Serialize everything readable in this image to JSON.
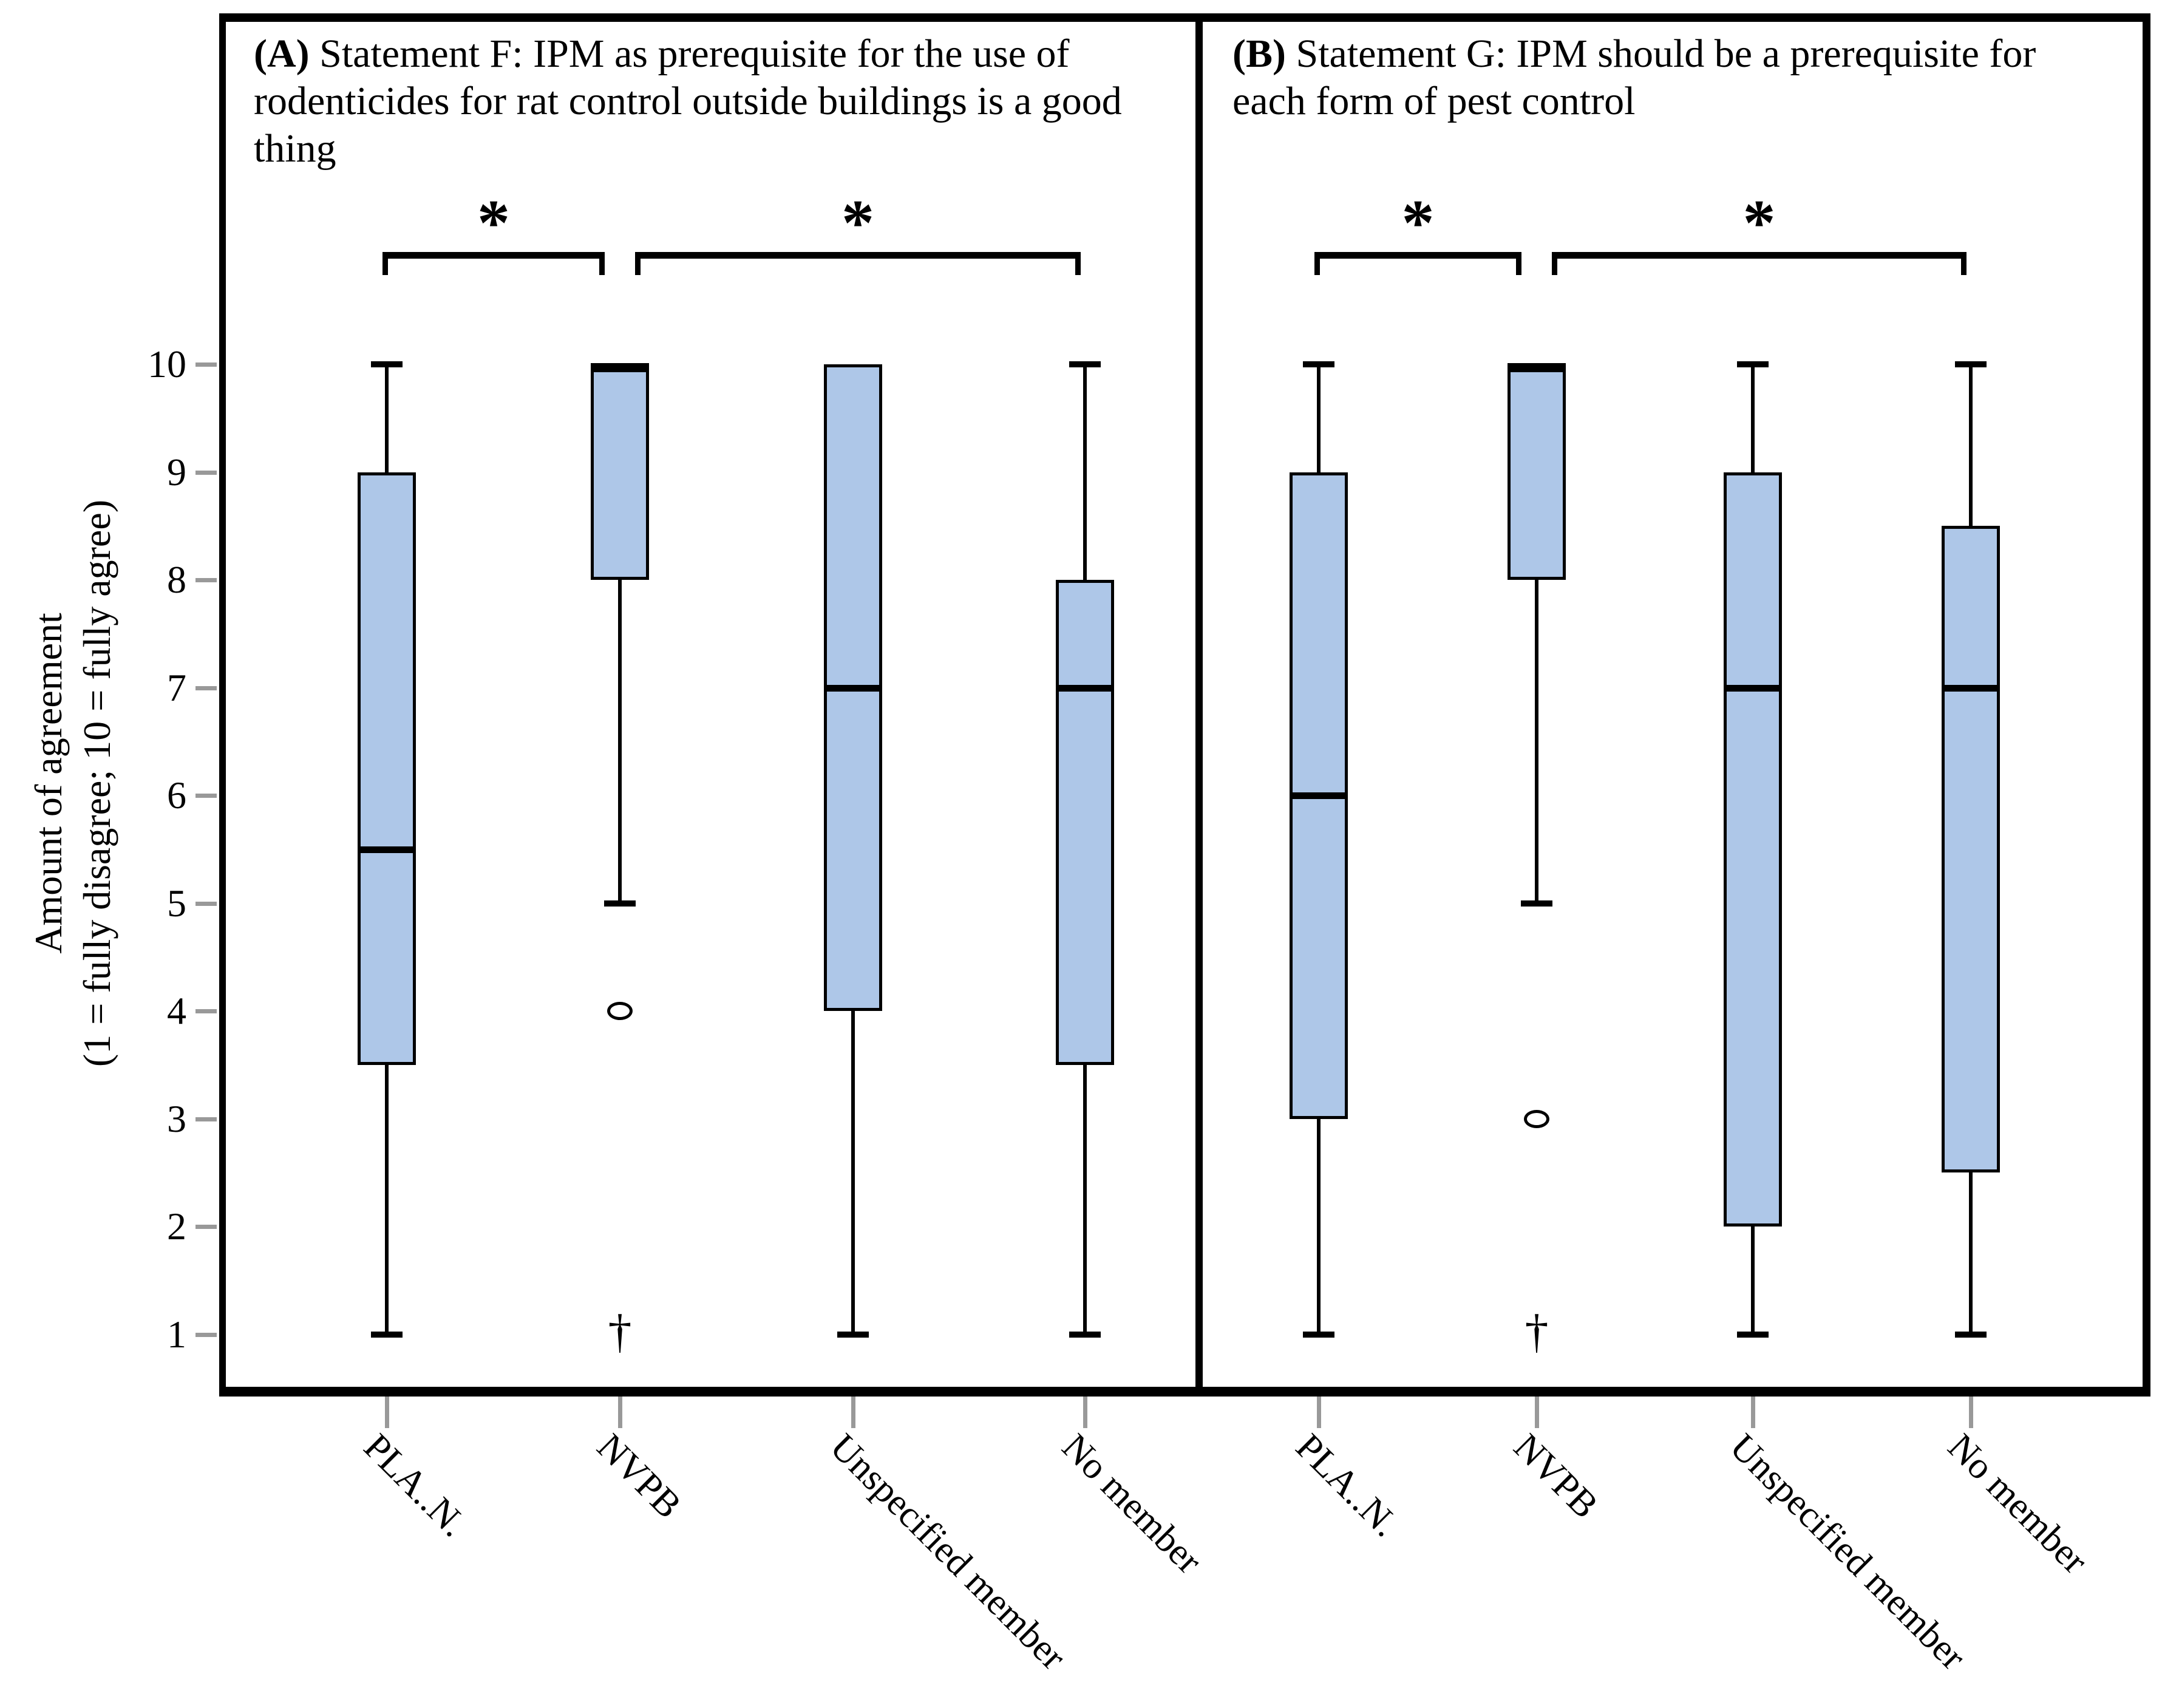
{
  "figure": {
    "y_axis": {
      "label_line1": "Amount of agreement",
      "label_line2": "(1 = fully disagree; 10 = fully agree)",
      "ticks": [
        10,
        9,
        8,
        7,
        6,
        5,
        4,
        3,
        2,
        1
      ]
    },
    "colors": {
      "box_fill": "#aec7e8",
      "line": "#000000",
      "tick_grey": "#999999"
    }
  },
  "chart_data": [
    {
      "type": "box",
      "panel": "A",
      "title_prefix": "(A)",
      "title": "Statement F: IPM as prerequisite for the use of rodenticides for rat control outside buildings is a good thing",
      "ylabel": "Amount of agreement (1 = fully disagree; 10 = fully agree)",
      "ylim": [
        1,
        10
      ],
      "categories": [
        "PLA..N.",
        "NVPB",
        "Unspecified member",
        "No member"
      ],
      "boxes": [
        {
          "group": "PLA..N.",
          "whisker_low": 1,
          "q1": 3.5,
          "median": 5.5,
          "q3": 9,
          "whisker_high": 10,
          "outliers": []
        },
        {
          "group": "NVPB",
          "whisker_low": 5,
          "q1": 8,
          "median": 10,
          "q3": 10,
          "whisker_high": null,
          "outliers": [
            {
              "symbol": "circle",
              "value": 4
            },
            {
              "symbol": "dagger",
              "value": 1
            }
          ]
        },
        {
          "group": "Unspecified member",
          "whisker_low": 1,
          "q1": 4,
          "median": 7,
          "q3": 10,
          "whisker_high": null,
          "outliers": []
        },
        {
          "group": "No member",
          "whisker_low": 1,
          "q1": 3.5,
          "median": 7,
          "q3": 8,
          "whisker_high": 10,
          "outliers": []
        }
      ],
      "significance": [
        {
          "from": 0,
          "to": 1,
          "label": "*"
        },
        {
          "from": 1,
          "to": 3,
          "label": "*"
        }
      ]
    },
    {
      "type": "box",
      "panel": "B",
      "title_prefix": "(B)",
      "title": "Statement G: IPM should be a prerequisite for each form of pest control",
      "ylabel": "Amount of agreement (1 = fully disagree; 10 = fully agree)",
      "ylim": [
        1,
        10
      ],
      "categories": [
        "PLA..N.",
        "NVPB",
        "Unspecified member",
        "No member"
      ],
      "boxes": [
        {
          "group": "PLA..N.",
          "whisker_low": 1,
          "q1": 3,
          "median": 6,
          "q3": 9,
          "whisker_high": 10,
          "outliers": []
        },
        {
          "group": "NVPB",
          "whisker_low": 5,
          "q1": 8,
          "median": 10,
          "q3": 10,
          "whisker_high": null,
          "outliers": [
            {
              "symbol": "circle",
              "value": 3
            },
            {
              "symbol": "dagger",
              "value": 1
            }
          ]
        },
        {
          "group": "Unspecified member",
          "whisker_low": 1,
          "q1": 2,
          "median": 7,
          "q3": 9,
          "whisker_high": 10,
          "outliers": []
        },
        {
          "group": "No member",
          "whisker_low": 1,
          "q1": 2.5,
          "median": 7,
          "q3": 8.5,
          "whisker_high": 10,
          "outliers": []
        }
      ],
      "significance": [
        {
          "from": 0,
          "to": 1,
          "label": "*"
        },
        {
          "from": 1,
          "to": 3,
          "label": "*"
        }
      ]
    }
  ]
}
